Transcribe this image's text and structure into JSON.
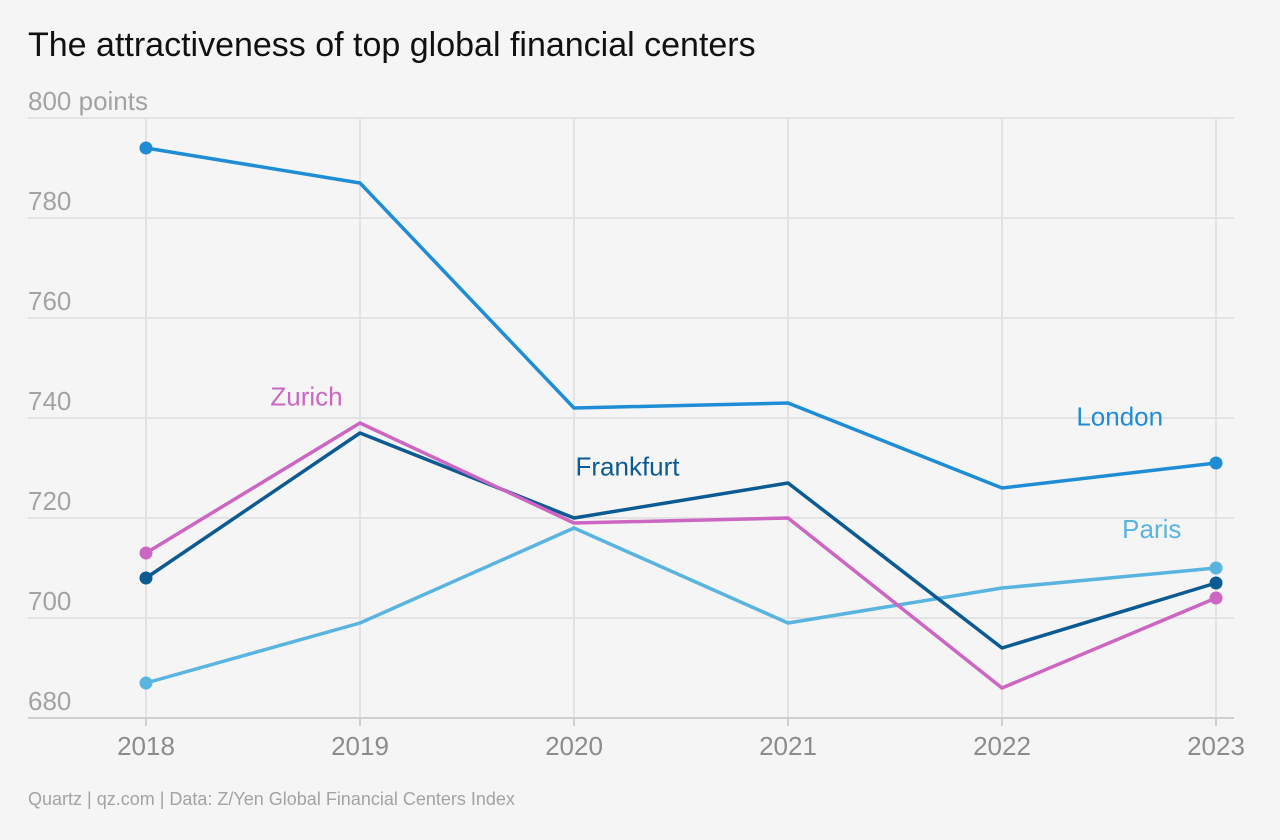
{
  "title": "The attractiveness of top global financial centers",
  "source": "Quartz | qz.com | Data: Z/Yen Global Financial Centers Index",
  "chart_data": {
    "type": "line",
    "title": "The attractiveness of top global financial centers",
    "ylabel": "",
    "xlabel": "",
    "y_top_tick_label": "800 points",
    "x": [
      "2018",
      "2019",
      "2020",
      "2021",
      "2022",
      "2023"
    ],
    "ylim": [
      680,
      800
    ],
    "y_ticks": [
      680,
      700,
      720,
      740,
      760,
      780,
      800
    ],
    "y_tick_labels": [
      "680",
      "700",
      "720",
      "740",
      "760",
      "780",
      "800 points"
    ],
    "grid": true,
    "series": [
      {
        "name": "London",
        "color": "#1f8dd6",
        "values": [
          794,
          787,
          742,
          743,
          726,
          731
        ]
      },
      {
        "name": "Zurich",
        "color": "#cc66c2",
        "values": [
          713,
          739,
          719,
          720,
          686,
          704
        ]
      },
      {
        "name": "Frankfurt",
        "color": "#0c5a92",
        "values": [
          708,
          737,
          720,
          727,
          694,
          707
        ]
      },
      {
        "name": "Paris",
        "color": "#5ab4e0",
        "values": [
          687,
          699,
          718,
          699,
          706,
          710
        ]
      }
    ]
  }
}
